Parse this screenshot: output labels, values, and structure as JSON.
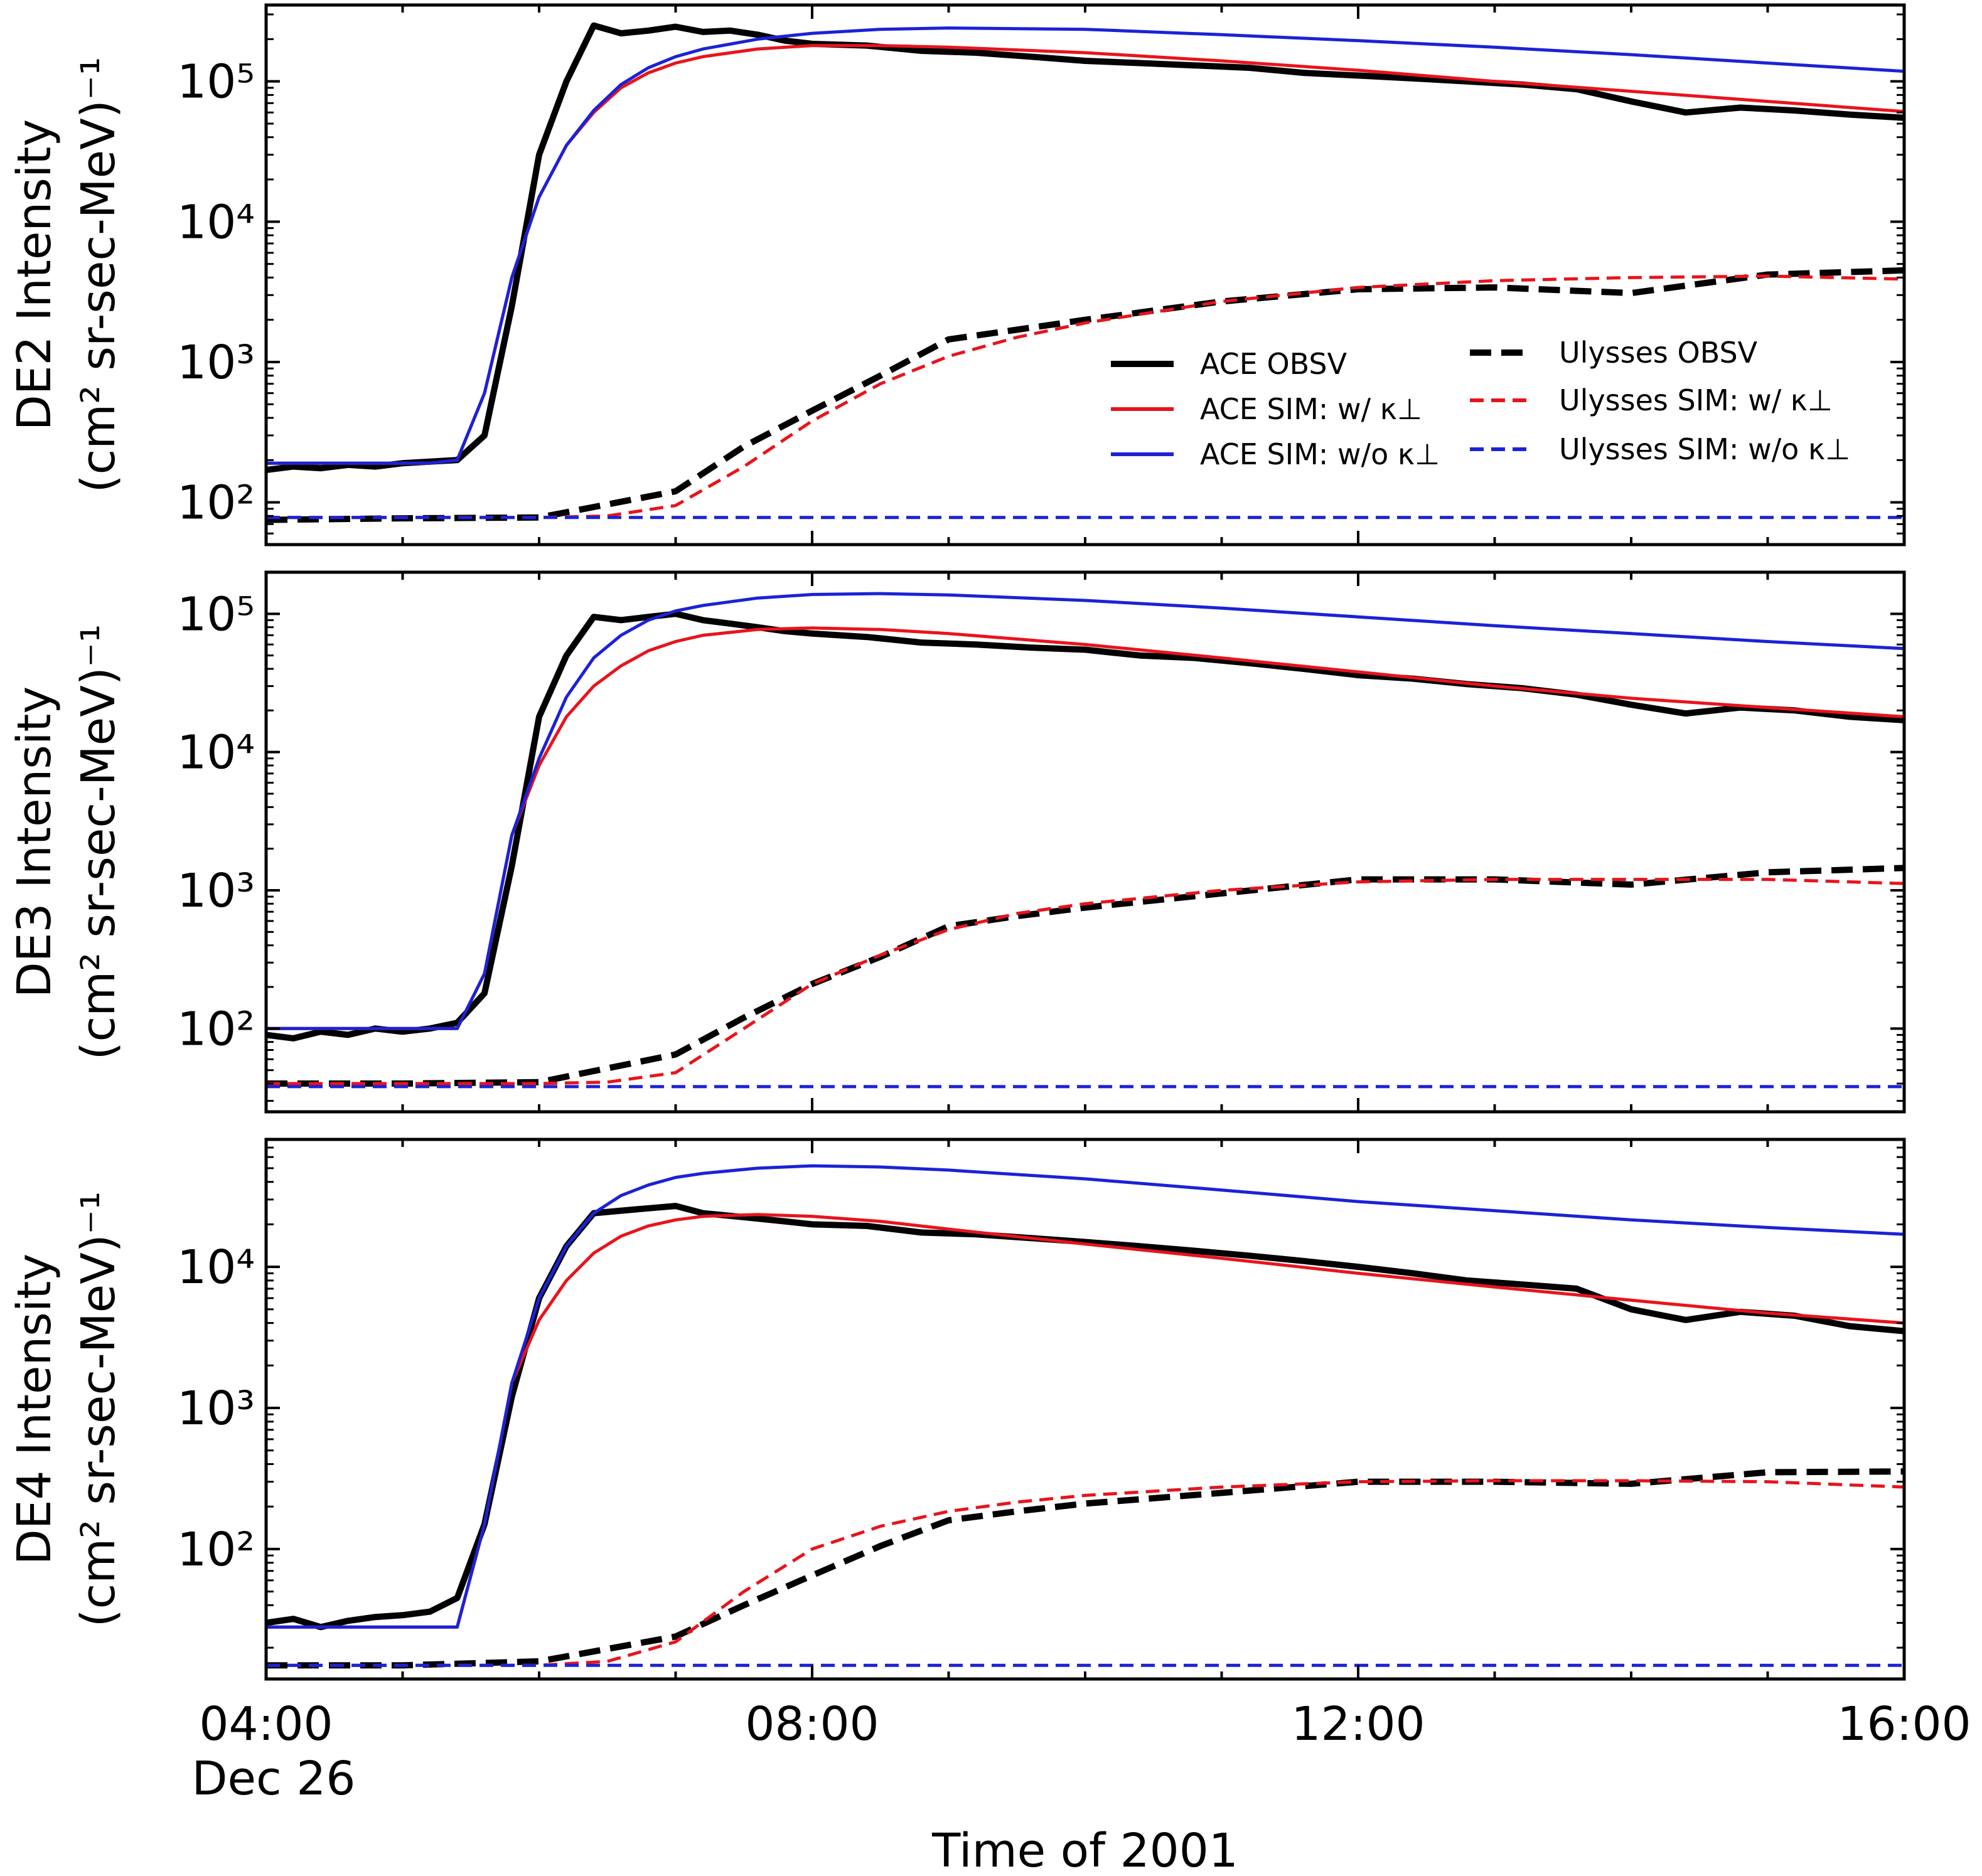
{
  "figure": {
    "xlabel": "Time of 2001",
    "date_label": "Dec 26",
    "x_ticks": [
      "04:00",
      "08:00",
      "12:00",
      "16:00"
    ]
  },
  "colors": {
    "observed": "#000000",
    "sim_with_kperp": "#e8141c",
    "sim_without_kperp": "#1c22d6"
  },
  "legend": {
    "ace_obsv": "ACE OBSV",
    "ace_sim_w": "ACE SIM: w/ κ⊥",
    "ace_sim_wo": "ACE SIM: w/o κ⊥",
    "uly_obsv": "Ulysses OBSV",
    "uly_sim_w": "Ulysses SIM: w/ κ⊥",
    "uly_sim_wo": "Ulysses SIM: w/o κ⊥"
  },
  "chart_data": [
    {
      "type": "line",
      "panel": "DE2",
      "ylabel_line1": "DE2 Intensity",
      "ylabel_line2": "(cm² sr-sec-MeV)⁻¹",
      "yscale": "log",
      "ylim": [
        50,
        350000
      ],
      "xlim": [
        4.0,
        16.0
      ],
      "y_tick_labels": [
        "10²",
        "10³",
        "10⁴",
        "10⁵"
      ],
      "series": [
        {
          "name": "ACE OBSV",
          "style": "obs-solid",
          "x": [
            4.0,
            4.2,
            4.4,
            4.6,
            4.8,
            5.0,
            5.2,
            5.4,
            5.6,
            5.8,
            6.0,
            6.2,
            6.4,
            6.6,
            6.8,
            7.0,
            7.2,
            7.4,
            7.6,
            7.8,
            8.0,
            8.4,
            8.8,
            9.2,
            9.6,
            10.0,
            10.4,
            10.8,
            11.2,
            11.6,
            12.0,
            12.4,
            12.8,
            13.2,
            13.6,
            14.0,
            14.4,
            14.8,
            15.2,
            15.6,
            16.0
          ],
          "y": [
            170,
            180,
            175,
            185,
            180,
            190,
            195,
            200,
            300,
            2500,
            30000,
            100000,
            250000,
            220000,
            230000,
            245000,
            225000,
            230000,
            215000,
            195000,
            185000,
            180000,
            165000,
            160000,
            150000,
            140000,
            135000,
            130000,
            125000,
            115000,
            110000,
            105000,
            100000,
            95000,
            88000,
            72000,
            60000,
            65000,
            62000,
            58000,
            55000
          ]
        },
        {
          "name": "ACE SIM: w/ κ⊥",
          "style": "sim-w-solid",
          "x": [
            4.0,
            5.0,
            5.2,
            5.4,
            5.6,
            5.8,
            6.0,
            6.2,
            6.4,
            6.6,
            6.8,
            7.0,
            7.2,
            7.6,
            8.0,
            8.5,
            9.0,
            10.0,
            11.0,
            12.0,
            13.0,
            14.0,
            15.0,
            16.0
          ],
          "y": [
            190,
            190,
            190,
            200,
            600,
            4000,
            15000,
            35000,
            60000,
            90000,
            115000,
            135000,
            150000,
            170000,
            180000,
            180000,
            175000,
            160000,
            140000,
            120000,
            100000,
            85000,
            72000,
            61000
          ]
        },
        {
          "name": "ACE SIM: w/o κ⊥",
          "style": "sim-wo-solid",
          "x": [
            4.0,
            5.0,
            5.2,
            5.4,
            5.6,
            5.8,
            6.0,
            6.2,
            6.4,
            6.6,
            6.8,
            7.0,
            7.2,
            7.6,
            8.0,
            8.5,
            9.0,
            10.0,
            11.0,
            12.0,
            13.0,
            14.0,
            15.0,
            16.0
          ],
          "y": [
            190,
            190,
            190,
            200,
            600,
            4000,
            15000,
            35000,
            62000,
            95000,
            125000,
            150000,
            170000,
            200000,
            220000,
            235000,
            240000,
            235000,
            215000,
            195000,
            175000,
            155000,
            135000,
            118000
          ]
        },
        {
          "name": "Ulysses OBSV",
          "style": "obs-dash",
          "x": [
            4.0,
            5.0,
            6.0,
            7.0,
            7.5,
            8.0,
            8.5,
            9.0,
            9.5,
            10.0,
            11.0,
            12.0,
            13.0,
            14.0,
            15.0,
            16.0
          ],
          "y": [
            75,
            77,
            78,
            120,
            250,
            450,
            800,
            1450,
            1700,
            2000,
            2700,
            3300,
            3400,
            3100,
            4200,
            4500
          ]
        },
        {
          "name": "Ulysses SIM: w/ κ⊥",
          "style": "sim-w-dash",
          "x": [
            4.0,
            6.0,
            6.5,
            7.0,
            7.5,
            8.0,
            8.5,
            9.0,
            9.5,
            10.0,
            11.0,
            12.0,
            13.0,
            14.0,
            15.0,
            16.0
          ],
          "y": [
            78,
            78,
            80,
            95,
            180,
            380,
            700,
            1100,
            1500,
            1900,
            2700,
            3400,
            3800,
            4000,
            4100,
            3900
          ]
        },
        {
          "name": "Ulysses SIM: w/o κ⊥",
          "style": "sim-wo-dash",
          "x": [
            4.0,
            16.0
          ],
          "y": [
            78,
            78
          ]
        }
      ]
    },
    {
      "type": "line",
      "panel": "DE3",
      "ylabel_line1": "DE3 Intensity",
      "ylabel_line2": "(cm² sr-sec-MeV)⁻¹",
      "yscale": "log",
      "ylim": [
        25,
        200000
      ],
      "xlim": [
        4.0,
        16.0
      ],
      "y_tick_labels": [
        "10²",
        "10³",
        "10⁴",
        "10⁵"
      ],
      "series": [
        {
          "name": "ACE OBSV",
          "style": "obs-solid",
          "x": [
            4.0,
            4.2,
            4.4,
            4.6,
            4.8,
            5.0,
            5.2,
            5.4,
            5.6,
            5.8,
            6.0,
            6.2,
            6.4,
            6.6,
            6.8,
            7.0,
            7.2,
            7.4,
            7.6,
            7.8,
            8.0,
            8.4,
            8.8,
            9.2,
            9.6,
            10.0,
            10.4,
            10.8,
            11.2,
            11.6,
            12.0,
            12.4,
            12.8,
            13.2,
            13.6,
            14.0,
            14.4,
            14.8,
            15.2,
            15.6,
            16.0
          ],
          "y": [
            90,
            85,
            95,
            90,
            100,
            95,
            100,
            110,
            180,
            1500,
            18000,
            50000,
            95000,
            90000,
            95000,
            100000,
            90000,
            85000,
            80000,
            75000,
            72000,
            68000,
            62000,
            60000,
            57000,
            55000,
            50000,
            48000,
            44000,
            40000,
            36000,
            34000,
            31000,
            29000,
            26000,
            22000,
            19000,
            21000,
            20000,
            18000,
            17000
          ]
        },
        {
          "name": "ACE SIM: w/ κ⊥",
          "style": "sim-w-solid",
          "x": [
            4.0,
            5.0,
            5.2,
            5.4,
            5.6,
            5.8,
            6.0,
            6.2,
            6.4,
            6.6,
            6.8,
            7.0,
            7.2,
            7.6,
            8.0,
            8.5,
            9.0,
            10.0,
            11.0,
            12.0,
            13.0,
            14.0,
            15.0,
            16.0
          ],
          "y": [
            100,
            100,
            100,
            100,
            250,
            2500,
            8000,
            18000,
            30000,
            42000,
            54000,
            63000,
            70000,
            77000,
            79000,
            77000,
            72000,
            60000,
            48000,
            38000,
            30000,
            24500,
            21000,
            18000
          ]
        },
        {
          "name": "ACE SIM: w/o κ⊥",
          "style": "sim-wo-solid",
          "x": [
            4.0,
            5.0,
            5.2,
            5.4,
            5.6,
            5.8,
            6.0,
            6.2,
            6.4,
            6.6,
            6.8,
            7.0,
            7.2,
            7.6,
            8.0,
            8.5,
            9.0,
            10.0,
            11.0,
            12.0,
            13.0,
            14.0,
            15.0,
            16.0
          ],
          "y": [
            100,
            100,
            100,
            100,
            250,
            2500,
            9000,
            25000,
            48000,
            70000,
            90000,
            105000,
            115000,
            130000,
            138000,
            140000,
            137000,
            125000,
            110000,
            95000,
            82000,
            72000,
            63000,
            56000
          ]
        },
        {
          "name": "Ulysses OBSV",
          "style": "obs-dash",
          "x": [
            4.0,
            5.0,
            6.0,
            7.0,
            7.5,
            8.0,
            8.5,
            9.0,
            9.5,
            10.0,
            11.0,
            12.0,
            13.0,
            14.0,
            15.0,
            16.0
          ],
          "y": [
            40,
            40,
            41,
            65,
            120,
            210,
            330,
            550,
            650,
            750,
            950,
            1200,
            1200,
            1100,
            1350,
            1450
          ]
        },
        {
          "name": "Ulysses SIM: w/ κ⊥",
          "style": "sim-w-dash",
          "x": [
            4.0,
            6.0,
            6.5,
            7.0,
            7.5,
            8.0,
            8.5,
            9.0,
            9.5,
            10.0,
            11.0,
            12.0,
            13.0,
            14.0,
            15.0,
            16.0
          ],
          "y": [
            40,
            40,
            41,
            48,
            100,
            210,
            340,
            520,
            680,
            800,
            1000,
            1150,
            1200,
            1200,
            1200,
            1120
          ]
        },
        {
          "name": "Ulysses SIM: w/o κ⊥",
          "style": "sim-wo-dash",
          "x": [
            4.0,
            16.0
          ],
          "y": [
            38,
            38
          ]
        }
      ]
    },
    {
      "type": "line",
      "panel": "DE4",
      "ylabel_line1": "DE4 Intensity",
      "ylabel_line2": "(cm² sr-sec-MeV)⁻¹",
      "yscale": "log",
      "ylim": [
        12,
        80000
      ],
      "xlim": [
        4.0,
        16.0
      ],
      "y_tick_labels": [
        "10²",
        "10³",
        "10⁴"
      ],
      "series": [
        {
          "name": "ACE OBSV",
          "style": "obs-solid",
          "x": [
            4.0,
            4.2,
            4.4,
            4.6,
            4.8,
            5.0,
            5.2,
            5.4,
            5.6,
            5.8,
            6.0,
            6.2,
            6.4,
            6.6,
            6.8,
            7.0,
            7.2,
            7.4,
            7.6,
            7.8,
            8.0,
            8.4,
            8.8,
            9.2,
            9.6,
            10.0,
            10.4,
            10.8,
            11.2,
            11.6,
            12.0,
            12.4,
            12.8,
            13.2,
            13.6,
            14.0,
            14.4,
            14.8,
            15.2,
            15.6,
            16.0
          ],
          "y": [
            30,
            32,
            28,
            31,
            33,
            34,
            36,
            45,
            150,
            1200,
            6000,
            14000,
            24000,
            25000,
            26000,
            27000,
            24000,
            23000,
            22000,
            21000,
            20000,
            19500,
            17500,
            17000,
            16000,
            15000,
            14000,
            13000,
            12000,
            11000,
            10000,
            9000,
            8000,
            7500,
            7000,
            5000,
            4200,
            4800,
            4500,
            3800,
            3500
          ]
        },
        {
          "name": "ACE SIM: w/ κ⊥",
          "style": "sim-w-solid",
          "x": [
            4.0,
            5.0,
            5.2,
            5.4,
            5.6,
            5.8,
            6.0,
            6.2,
            6.4,
            6.6,
            6.8,
            7.0,
            7.2,
            7.6,
            8.0,
            8.5,
            9.0,
            10.0,
            11.0,
            12.0,
            13.0,
            14.0,
            15.0,
            16.0
          ],
          "y": [
            28,
            28,
            28,
            28,
            150,
            1500,
            4200,
            8000,
            12500,
            16500,
            19500,
            21500,
            22800,
            23500,
            22800,
            21000,
            18500,
            14500,
            11500,
            9000,
            7200,
            5800,
            4700,
            4000
          ]
        },
        {
          "name": "ACE SIM: w/o κ⊥",
          "style": "sim-wo-solid",
          "x": [
            4.0,
            5.0,
            5.2,
            5.4,
            5.6,
            5.8,
            6.0,
            6.2,
            6.4,
            6.6,
            6.8,
            7.0,
            7.2,
            7.6,
            8.0,
            8.5,
            9.0,
            10.0,
            11.0,
            12.0,
            13.0,
            14.0,
            15.0,
            16.0
          ],
          "y": [
            28,
            28,
            28,
            28,
            150,
            1500,
            6000,
            14000,
            24000,
            32000,
            38000,
            43000,
            46000,
            50000,
            52000,
            51000,
            48500,
            42000,
            35000,
            29000,
            25000,
            21500,
            19000,
            17000
          ]
        },
        {
          "name": "Ulysses OBSV",
          "style": "obs-dash",
          "x": [
            4.0,
            5.0,
            6.0,
            7.0,
            7.5,
            8.0,
            8.5,
            9.0,
            9.5,
            10.0,
            11.0,
            12.0,
            13.0,
            14.0,
            15.0,
            16.0
          ],
          "y": [
            15,
            15,
            16,
            24,
            40,
            65,
            105,
            160,
            185,
            210,
            250,
            300,
            300,
            290,
            350,
            355
          ]
        },
        {
          "name": "Ulysses SIM: w/ κ⊥",
          "style": "sim-w-dash",
          "x": [
            4.0,
            6.0,
            6.5,
            7.0,
            7.5,
            8.0,
            8.5,
            9.0,
            9.5,
            10.0,
            11.0,
            12.0,
            13.0,
            14.0,
            15.0,
            16.0
          ],
          "y": [
            15,
            15,
            16,
            22,
            50,
            100,
            145,
            185,
            215,
            240,
            275,
            300,
            305,
            305,
            300,
            275
          ]
        },
        {
          "name": "Ulysses SIM: w/o κ⊥",
          "style": "sim-wo-dash",
          "x": [
            4.0,
            16.0
          ],
          "y": [
            15,
            15
          ]
        }
      ]
    }
  ]
}
